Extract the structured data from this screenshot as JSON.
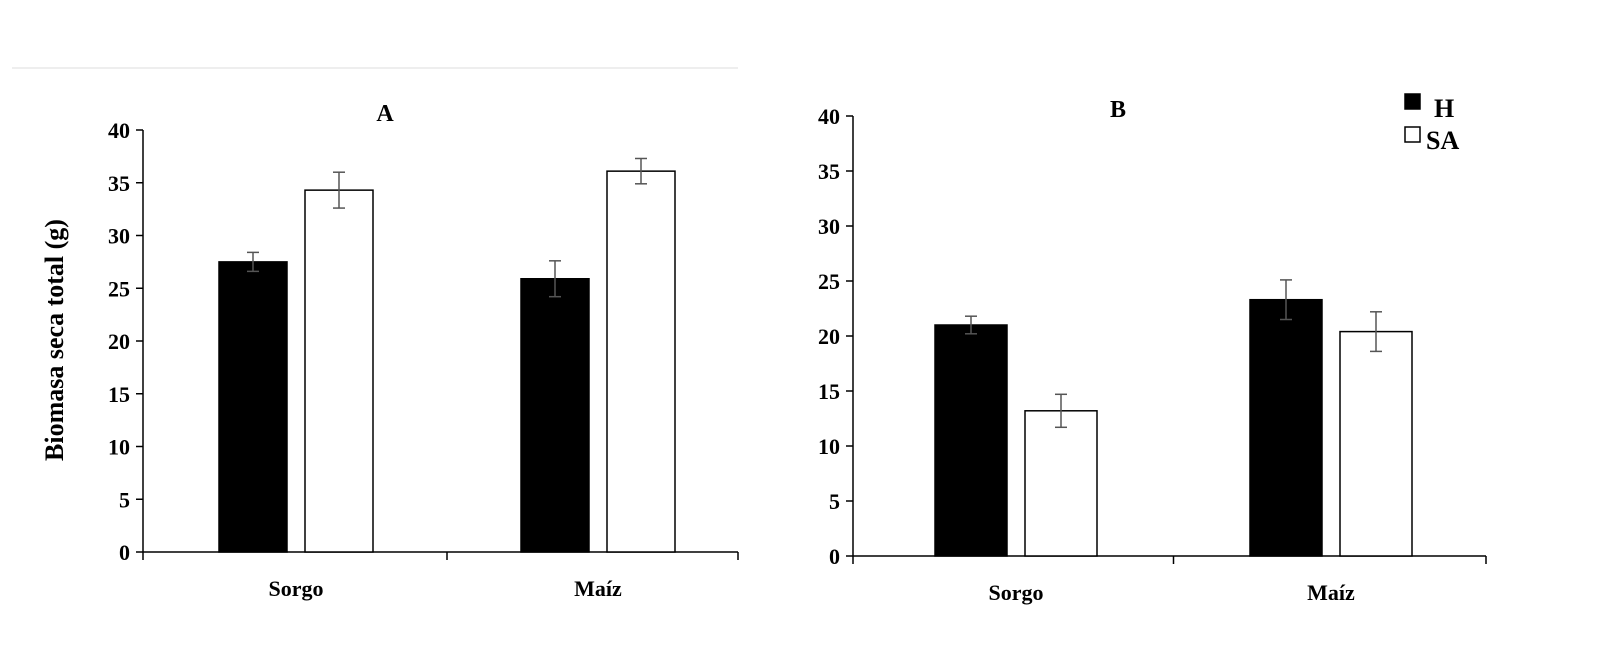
{
  "colors": {
    "H": "#000000",
    "SA": "#ffffff",
    "axis": "#000000",
    "errorbar": "#555555",
    "divider": "#eeeeee"
  },
  "ylabel": "Biomasa seca total (g)",
  "legend": [
    {
      "name": "H",
      "color": "#000000"
    },
    {
      "name": "SA",
      "color": "#ffffff"
    }
  ],
  "chart_data": [
    {
      "type": "bar",
      "title": "A",
      "categories": [
        "Sorgo",
        "Maíz"
      ],
      "ylabel": "Biomasa seca total (g)",
      "ylim": [
        0,
        40
      ],
      "yticks": [
        0,
        5,
        10,
        15,
        20,
        25,
        30,
        35,
        40
      ],
      "series": [
        {
          "name": "H",
          "values": [
            27.5,
            25.9
          ],
          "errors": [
            0.9,
            1.7
          ]
        },
        {
          "name": "SA",
          "values": [
            34.3,
            36.1
          ],
          "errors": [
            1.7,
            1.2
          ]
        }
      ],
      "grid": false
    },
    {
      "type": "bar",
      "title": "B",
      "categories": [
        "Sorgo",
        "Maíz"
      ],
      "ylim": [
        0,
        40
      ],
      "yticks": [
        0,
        5,
        10,
        15,
        20,
        25,
        30,
        35,
        40
      ],
      "series": [
        {
          "name": "H",
          "values": [
            21.0,
            23.3
          ],
          "errors": [
            0.8,
            1.8
          ]
        },
        {
          "name": "SA",
          "values": [
            13.2,
            20.4
          ],
          "errors": [
            1.5,
            1.8
          ]
        }
      ],
      "legend_position": "top-right",
      "grid": false
    }
  ]
}
